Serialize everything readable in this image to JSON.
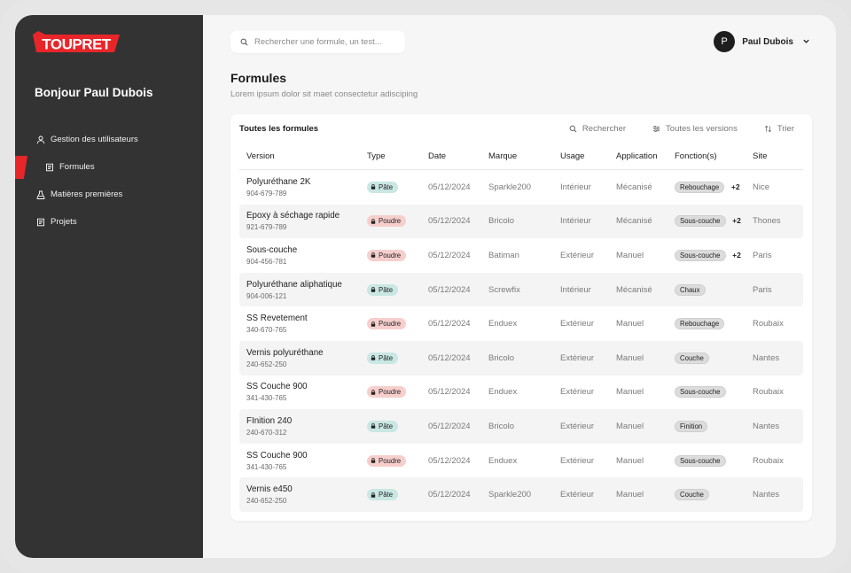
{
  "brand": {
    "logo_text": "TOUPRET",
    "accent": "#e8262a"
  },
  "sidebar": {
    "greeting": "Bonjour Paul Dubois",
    "items": [
      {
        "label": "Gestion des utilisateurs",
        "icon": "user-icon"
      },
      {
        "label": "Formules",
        "icon": "document-icon",
        "active": true
      },
      {
        "label": "Matières premières",
        "icon": "materials-icon"
      },
      {
        "label": "Projets",
        "icon": "folder-icon"
      }
    ]
  },
  "header": {
    "search_placeholder": "Rechercher une formule, un test...",
    "user_initial": "P",
    "user_name": "Paul Dubois"
  },
  "page": {
    "title": "Formules",
    "subtitle": "Lorem ipsum dolor sit maet consectetur adisciping"
  },
  "table": {
    "title": "Toutes les formules",
    "tools": {
      "search": "Rechercher",
      "versions": "Toutes les versions",
      "sort": "Trier"
    },
    "columns": [
      "Version",
      "Type",
      "Date",
      "Marque",
      "Usage",
      "Application",
      "Fonction(s)",
      "Site"
    ],
    "rows": [
      {
        "name": "Polyuréthane 2K",
        "code": "904-679-789",
        "type": "Pâte",
        "date": "05/12/2024",
        "brand": "Sparkle200",
        "usage": "Intérieur",
        "application": "Mécanisé",
        "function": "Rebouchage",
        "more": "+2",
        "site": "Nice"
      },
      {
        "name": "Époxy à séchage rapide",
        "code": "921-679-789",
        "type": "Poudre",
        "date": "05/12/2024",
        "brand": "Bricolo",
        "usage": "Intérieur",
        "application": "Mécanisé",
        "function": "Sous-couche",
        "more": "+2",
        "site": "Thones"
      },
      {
        "name": "Sous-couche",
        "code": "904-456-781",
        "type": "Poudre",
        "date": "05/12/2024",
        "brand": "Batiman",
        "usage": "Extérieur",
        "application": "Manuel",
        "function": "Sous-couche",
        "more": "+2",
        "site": "Paris"
      },
      {
        "name": "Polyuréthane aliphatique",
        "code": "904-006-121",
        "type": "Pâte",
        "date": "05/12/2024",
        "brand": "Screwfix",
        "usage": "Intérieur",
        "application": "Mécanisé",
        "function": "Chaux",
        "more": "",
        "site": "Paris"
      },
      {
        "name": "SS Revetement",
        "code": "340-670-765",
        "type": "Poudre",
        "date": "05/12/2024",
        "brand": "Enduex",
        "usage": "Extérieur",
        "application": "Manuel",
        "function": "Rebouchage",
        "more": "",
        "site": "Roubaix"
      },
      {
        "name": "Vernis polyuréthane",
        "code": "240-652-250",
        "type": "Pâte",
        "date": "05/12/2024",
        "brand": "Bricolo",
        "usage": "Extérieur",
        "application": "Manuel",
        "function": "Couche",
        "more": "",
        "site": "Nantes"
      },
      {
        "name": "SS Couche 900",
        "code": "341-430-765",
        "type": "Poudre",
        "date": "05/12/2024",
        "brand": "Enduex",
        "usage": "Extérieur",
        "application": "Manuel",
        "function": "Sous-couche",
        "more": "",
        "site": "Roubaix"
      },
      {
        "name": "FInition 240",
        "code": "240-670-312",
        "type": "Pâte",
        "date": "05/12/2024",
        "brand": "Bricolo",
        "usage": "Extérieur",
        "application": "Manuel",
        "function": "Finition",
        "more": "",
        "site": "Nantes"
      },
      {
        "name": "SS Couche 900",
        "code": "341-430-765",
        "type": "Poudre",
        "date": "05/12/2024",
        "brand": "Enduex",
        "usage": "Extérieur",
        "application": "Manuel",
        "function": "Sous-couche",
        "more": "",
        "site": "Roubaix"
      },
      {
        "name": "Vernis e450",
        "code": "240-652-250",
        "type": "Pâte",
        "date": "05/12/2024",
        "brand": "Sparkle200",
        "usage": "Extérieur",
        "application": "Manuel",
        "function": "Couche",
        "more": "",
        "site": "Nantes"
      }
    ]
  }
}
